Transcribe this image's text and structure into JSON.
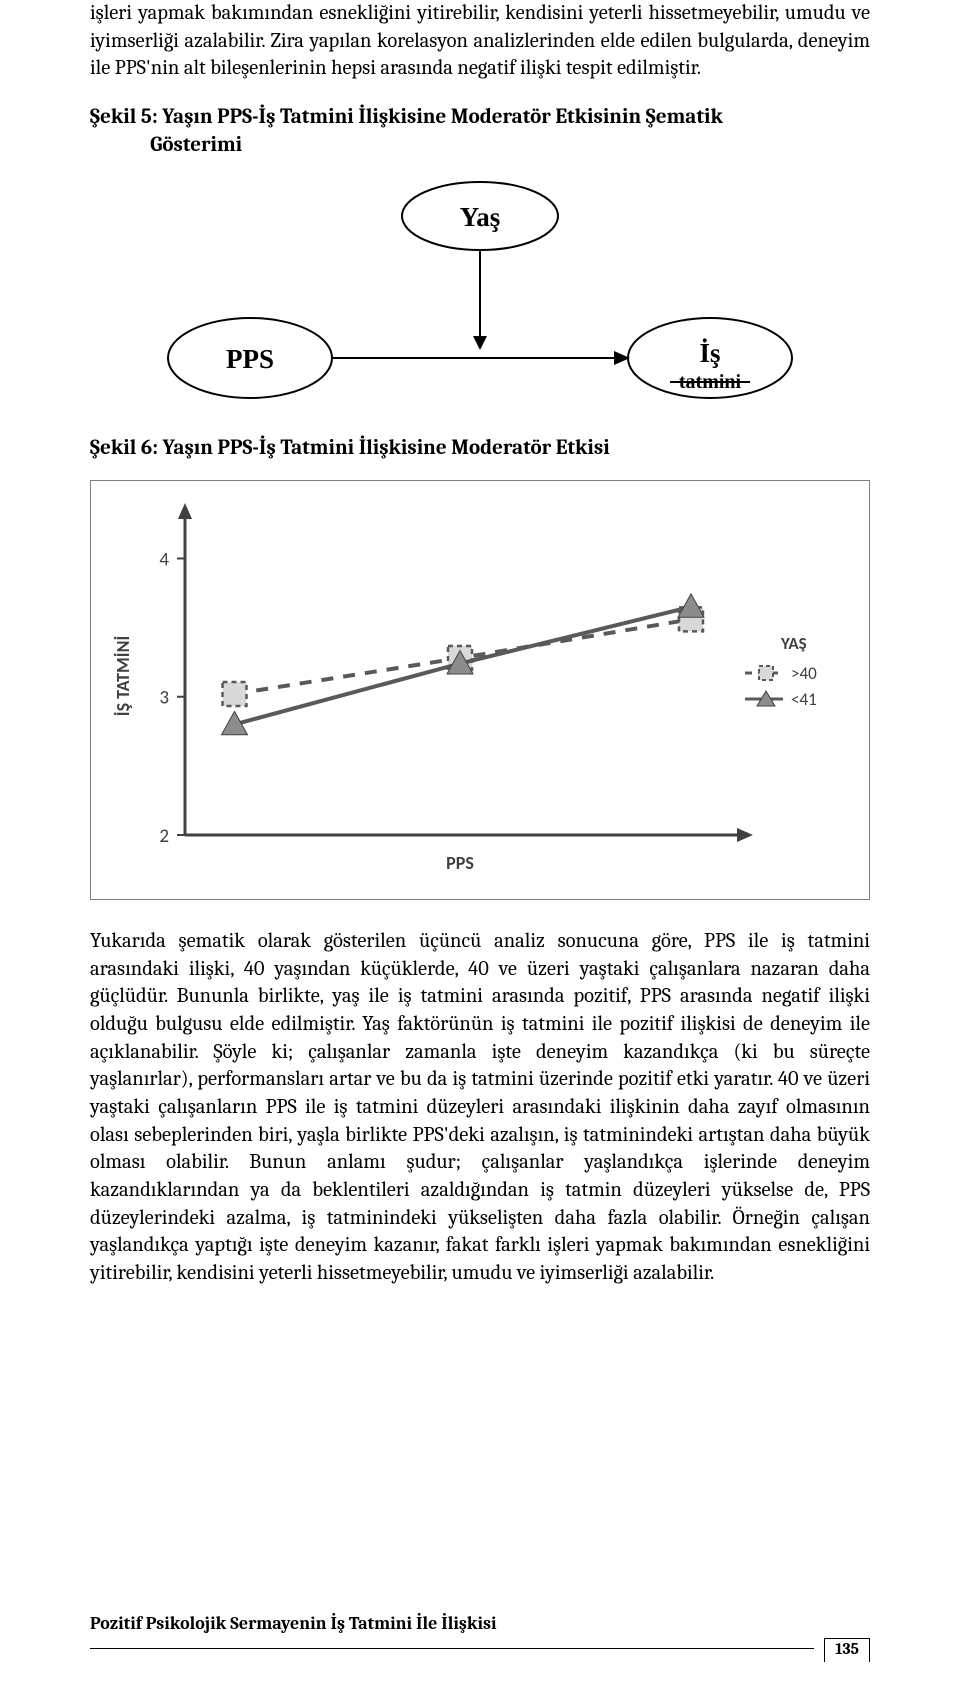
{
  "para_top": "işleri yapmak bakımından esnekliğini yitirebilir, kendisini yeterli hissetmeyebilir, umudu ve iyimserliği azalabilir. Zira yapılan korelasyon analizlerinden elde edilen bulgularda, deneyim ile PPS'nin alt bileşenlerinin hepsi arasında negatif ilişki tespit edilmiştir.",
  "heading5": "Şekil 5: Yaşın PPS-İş Tatmini İlişkisine Moderatör Etkisinin Şematik\n             Gösterimi",
  "diagram": {
    "node_top": "Yaş",
    "node_left": "PPS",
    "node_right": "İş",
    "node_right_sub": "tatmini"
  },
  "heading6": "Şekil 6: Yaşın PPS-İş Tatmini İlişkisine Moderatör Etkisi",
  "chart": {
    "type": "line",
    "x_axis_label": "PPS",
    "y_axis_label": "İŞ TATMİNİ",
    "y_ticks": [
      2,
      3,
      4
    ],
    "ylim": [
      2,
      4.3
    ],
    "legend_title": "YAŞ",
    "series": [
      {
        "name": ">40",
        "style": "dashed",
        "color": "#595959",
        "marker": "square-dashed",
        "points": [
          {
            "x": 0.09,
            "y": 3.02
          },
          {
            "x": 0.5,
            "y": 3.28
          },
          {
            "x": 0.92,
            "y": 3.56
          }
        ]
      },
      {
        "name": "<41",
        "style": "solid",
        "color": "#595959",
        "marker": "triangle",
        "points": [
          {
            "x": 0.09,
            "y": 2.8
          },
          {
            "x": 0.5,
            "y": 3.24
          },
          {
            "x": 0.92,
            "y": 3.65
          }
        ]
      }
    ],
    "axis_color": "#404040",
    "line_width": 4,
    "plot_bg": "#ffffff"
  },
  "para_bottom": "Yukarıda şematik olarak gösterilen üçüncü analiz sonucuna göre, PPS ile iş tatmini arasındaki ilişki, 40 yaşından küçüklerde, 40 ve üzeri yaştaki çalışanlara nazaran daha güçlüdür. Bununla birlikte, yaş ile iş tatmini arasında pozitif, PPS arasında negatif ilişki olduğu bulgusu elde edilmiştir. Yaş faktörünün iş tatmini ile pozitif ilişkisi de deneyim ile açıklanabilir. Şöyle ki; çalışanlar zamanla işte deneyim kazandıkça (ki bu süreçte yaşlanırlar), performansları artar ve bu da iş tatmini üzerinde pozitif etki yaratır. 40 ve üzeri yaştaki çalışanların PPS ile iş tatmini düzeyleri arasındaki ilişkinin daha zayıf olmasının olası sebeplerinden biri, yaşla birlikte PPS'deki azalışın, iş tatminindeki artıştan daha büyük olması olabilir. Bunun anlamı şudur; çalışanlar yaşlandıkça işlerinde deneyim kazandıklarından ya da beklentileri azaldığından iş tatmin düzeyleri yükselse de, PPS düzeylerindeki azalma, iş tatminindeki yükselişten daha fazla olabilir. Örneğin çalışan yaşlandıkça yaptığı işte deneyim kazanır, fakat farklı işleri yapmak bakımından esnekliğini yitirebilir, kendisini yeterli hissetmeyebilir, umudu ve iyimserliği azalabilir.",
  "footer_title": "Pozitif Psikolojik Sermayenin İş Tatmini İle İlişkisi",
  "page_number": "135"
}
